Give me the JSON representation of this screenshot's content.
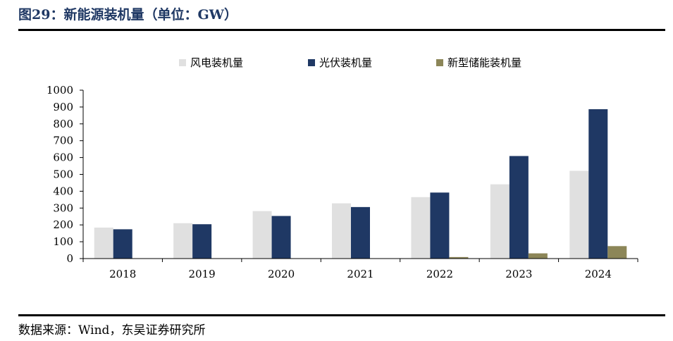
{
  "figure": {
    "title": "图29：新能源装机量（单位：GW）",
    "source": "数据来源：Wind，东吴证券研究所"
  },
  "colors": {
    "wind": "#e0e0e0",
    "solar": "#1f3864",
    "storage": "#8c8658",
    "title": "#1f3864",
    "axis": "#000000"
  },
  "chart_data": {
    "type": "bar",
    "title": "新能源装机量（单位：GW）",
    "categories": [
      "2018",
      "2019",
      "2020",
      "2021",
      "2022",
      "2023",
      "2024"
    ],
    "series": [
      {
        "name": "风电装机量",
        "color": "#e0e0e0",
        "values": [
          184,
          210,
          282,
          328,
          365,
          441,
          521
        ]
      },
      {
        "name": "光伏装机量",
        "color": "#1f3864",
        "values": [
          174,
          204,
          253,
          306,
          392,
          609,
          887
        ]
      },
      {
        "name": "新型储能装机量",
        "color": "#8c8658",
        "values": [
          0,
          0,
          0,
          0,
          9,
          31,
          74
        ]
      }
    ],
    "ylim": [
      0,
      1000
    ],
    "yticks": [
      0,
      100,
      200,
      300,
      400,
      500,
      600,
      700,
      800,
      900,
      1000
    ],
    "legend_position": "top",
    "grid": false
  }
}
